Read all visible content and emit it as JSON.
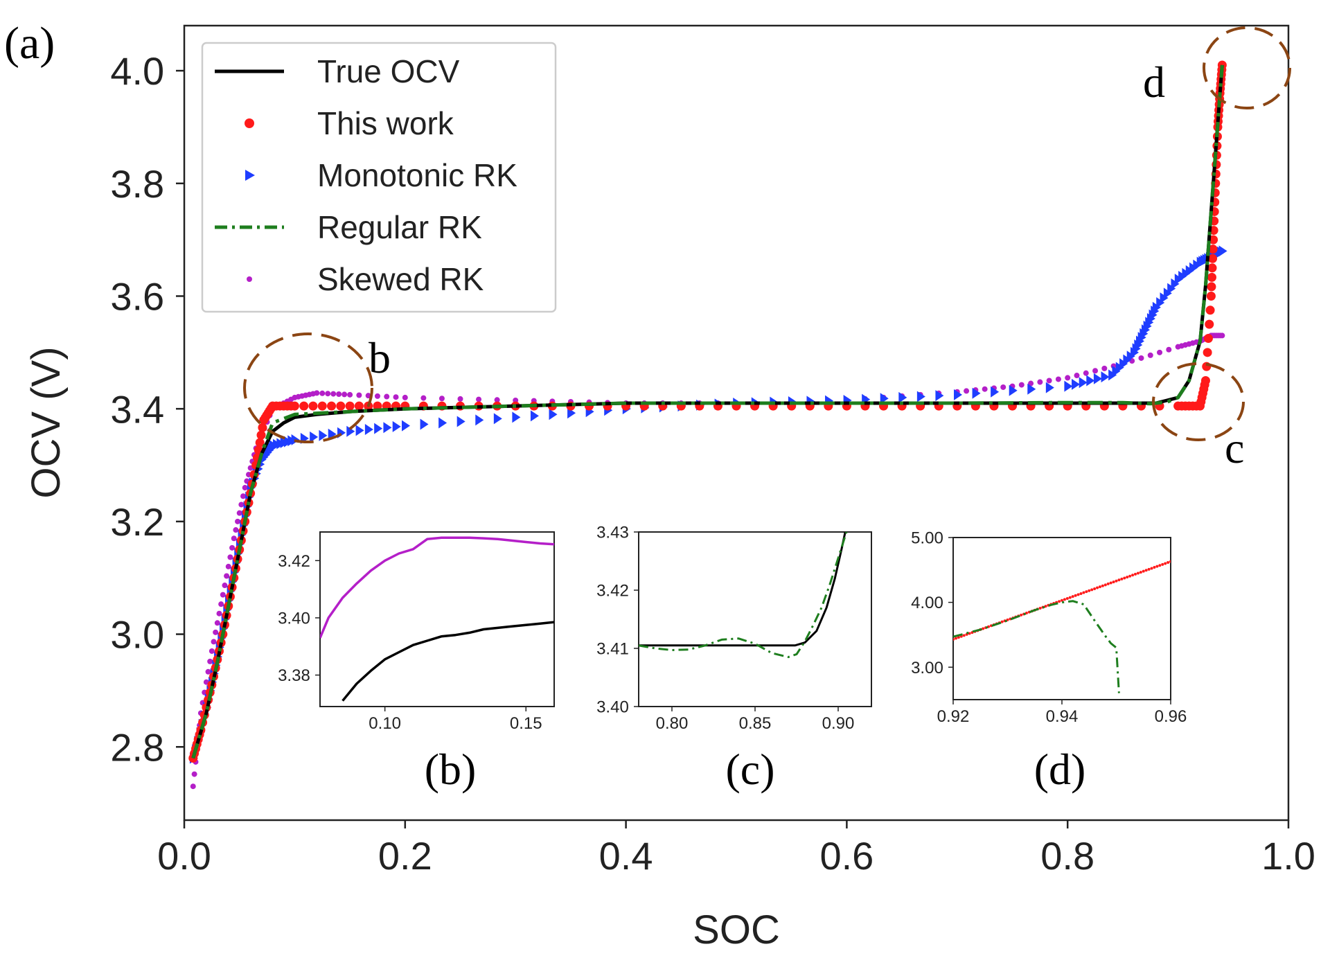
{
  "panel_label": "(a)",
  "colors": {
    "true_ocv": "#000000",
    "this_work": "#ff1a1a",
    "monotonic_rk": "#1f3dff",
    "regular_rk": "#1e7e1e",
    "skewed_rk": "#b41fc8",
    "highlight_circle": "#8b4513"
  },
  "markers": {
    "b": "b",
    "c": "c",
    "d": "d"
  },
  "chart_data": [
    {
      "id": "main",
      "type": "line",
      "xlabel": "SOC",
      "ylabel": "OCV (V)",
      "xlim": [
        0.0,
        1.0
      ],
      "ylim": [
        2.67,
        4.08
      ],
      "xticks": [
        0.0,
        0.2,
        0.4,
        0.6,
        0.8,
        1.0
      ],
      "xtick_labels": [
        "0.0",
        "0.2",
        "0.4",
        "0.6",
        "0.8",
        "1.0"
      ],
      "yticks": [
        2.8,
        3.0,
        3.2,
        3.4,
        3.6,
        3.8,
        4.0
      ],
      "ytick_labels": [
        "2.8",
        "3.0",
        "3.2",
        "3.4",
        "3.6",
        "3.8",
        "4.0"
      ],
      "grid": false,
      "legend_position": "top-left",
      "series": [
        {
          "name": "True OCV",
          "style": "solid-line",
          "x": [
            0.008,
            0.02,
            0.03,
            0.04,
            0.05,
            0.06,
            0.07,
            0.08,
            0.09,
            0.1,
            0.12,
            0.15,
            0.2,
            0.3,
            0.4,
            0.5,
            0.6,
            0.7,
            0.8,
            0.85,
            0.87,
            0.88,
            0.89,
            0.9,
            0.91,
            0.92,
            0.925,
            0.93,
            0.935,
            0.938,
            0.94
          ],
          "y": [
            2.78,
            2.86,
            2.95,
            3.05,
            3.15,
            3.25,
            3.32,
            3.36,
            3.375,
            3.385,
            3.39,
            3.395,
            3.4,
            3.405,
            3.41,
            3.41,
            3.41,
            3.41,
            3.41,
            3.41,
            3.41,
            3.41,
            3.415,
            3.42,
            3.45,
            3.52,
            3.62,
            3.75,
            3.88,
            3.96,
            4.01
          ]
        },
        {
          "name": "This work",
          "style": "dots",
          "x": [
            0.008,
            0.015,
            0.025,
            0.035,
            0.045,
            0.055,
            0.065,
            0.072,
            0.08,
            0.1,
            0.15,
            0.2,
            0.3,
            0.4,
            0.5,
            0.6,
            0.7,
            0.8,
            0.9,
            0.92,
            0.925,
            0.93,
            0.932,
            0.934,
            0.936,
            0.938,
            0.94
          ],
          "y": [
            2.78,
            2.83,
            2.91,
            3.0,
            3.1,
            3.2,
            3.3,
            3.38,
            3.405,
            3.405,
            3.405,
            3.405,
            3.405,
            3.405,
            3.405,
            3.405,
            3.405,
            3.405,
            3.405,
            3.405,
            3.45,
            3.6,
            3.7,
            3.8,
            3.9,
            3.96,
            4.01
          ]
        },
        {
          "name": "Monotonic RK",
          "style": "triangles",
          "x": [
            0.008,
            0.02,
            0.03,
            0.04,
            0.05,
            0.06,
            0.07,
            0.08,
            0.1,
            0.15,
            0.2,
            0.3,
            0.4,
            0.5,
            0.6,
            0.7,
            0.8,
            0.84,
            0.86,
            0.87,
            0.88,
            0.9,
            0.92,
            0.93,
            0.94
          ],
          "y": [
            2.78,
            2.87,
            2.96,
            3.06,
            3.16,
            3.26,
            3.31,
            3.335,
            3.345,
            3.36,
            3.37,
            3.385,
            3.4,
            3.41,
            3.415,
            3.425,
            3.44,
            3.46,
            3.5,
            3.54,
            3.58,
            3.63,
            3.66,
            3.67,
            3.68
          ]
        },
        {
          "name": "Regular RK",
          "style": "dash-dot",
          "x": [
            0.008,
            0.02,
            0.03,
            0.04,
            0.05,
            0.06,
            0.07,
            0.08,
            0.1,
            0.15,
            0.2,
            0.3,
            0.4,
            0.5,
            0.6,
            0.7,
            0.8,
            0.85,
            0.875,
            0.89,
            0.9,
            0.91,
            0.92,
            0.925,
            0.93,
            0.935,
            0.938,
            0.94
          ],
          "y": [
            2.78,
            2.86,
            2.95,
            3.05,
            3.15,
            3.25,
            3.32,
            3.375,
            3.39,
            3.395,
            3.4,
            3.405,
            3.41,
            3.41,
            3.41,
            3.41,
            3.411,
            3.411,
            3.409,
            3.412,
            3.42,
            3.45,
            3.52,
            3.62,
            3.75,
            3.88,
            3.96,
            4.01
          ]
        },
        {
          "name": "Skewed RK",
          "style": "small-dots",
          "x": [
            0.008,
            0.015,
            0.025,
            0.035,
            0.045,
            0.055,
            0.065,
            0.08,
            0.1,
            0.12,
            0.15,
            0.2,
            0.3,
            0.4,
            0.5,
            0.6,
            0.7,
            0.75,
            0.8,
            0.85,
            0.9,
            0.92,
            0.93,
            0.94
          ],
          "y": [
            2.73,
            2.86,
            2.97,
            3.07,
            3.17,
            3.26,
            3.33,
            3.4,
            3.42,
            3.428,
            3.425,
            3.42,
            3.415,
            3.41,
            3.41,
            3.415,
            3.43,
            3.44,
            3.455,
            3.48,
            3.51,
            3.52,
            3.53,
            3.53
          ]
        }
      ]
    },
    {
      "id": "inset-b",
      "type": "line",
      "label": "(b)",
      "xlim": [
        0.077,
        0.16
      ],
      "ylim": [
        3.369,
        3.43
      ],
      "xticks": [
        0.1,
        0.15
      ],
      "xtick_labels": [
        "0.10",
        "0.15"
      ],
      "yticks": [
        3.38,
        3.4,
        3.42
      ],
      "ytick_labels": [
        "3.38",
        "3.40",
        "3.42"
      ],
      "series": [
        {
          "name": "Skewed RK",
          "style": "solid-line",
          "x": [
            0.077,
            0.08,
            0.085,
            0.09,
            0.095,
            0.1,
            0.105,
            0.11,
            0.115,
            0.12,
            0.125,
            0.13,
            0.135,
            0.14,
            0.145,
            0.15,
            0.155,
            0.16
          ],
          "y": [
            3.393,
            3.4,
            3.407,
            3.412,
            3.4165,
            3.42,
            3.4225,
            3.424,
            3.4275,
            3.428,
            3.428,
            3.428,
            3.4278,
            3.4275,
            3.427,
            3.4265,
            3.426,
            3.4257
          ]
        },
        {
          "name": "True OCV",
          "style": "solid-line",
          "x": [
            0.085,
            0.09,
            0.095,
            0.1,
            0.105,
            0.11,
            0.115,
            0.12,
            0.125,
            0.13,
            0.135,
            0.14,
            0.145,
            0.15,
            0.155,
            0.16
          ],
          "y": [
            3.371,
            3.377,
            3.3815,
            3.3855,
            3.388,
            3.3905,
            3.392,
            3.3935,
            3.394,
            3.3948,
            3.396,
            3.3965,
            3.397,
            3.3975,
            3.398,
            3.3985
          ]
        }
      ]
    },
    {
      "id": "inset-c",
      "type": "line",
      "label": "(c)",
      "xlim": [
        0.78,
        0.92
      ],
      "ylim": [
        3.4,
        3.43
      ],
      "xticks": [
        0.8,
        0.85,
        0.9
      ],
      "xtick_labels": [
        "0.80",
        "0.85",
        "0.90"
      ],
      "yticks": [
        3.4,
        3.41,
        3.42,
        3.43
      ],
      "ytick_labels": [
        "3.40",
        "3.41",
        "3.42",
        "3.43"
      ],
      "series": [
        {
          "name": "True OCV",
          "style": "solid-line",
          "x": [
            0.78,
            0.8,
            0.82,
            0.84,
            0.86,
            0.874,
            0.88,
            0.887,
            0.893,
            0.898,
            0.902,
            0.905
          ],
          "y": [
            3.4105,
            3.4105,
            3.4105,
            3.4105,
            3.4105,
            3.4105,
            3.411,
            3.413,
            3.417,
            3.422,
            3.427,
            3.431
          ]
        },
        {
          "name": "Regular RK",
          "style": "dash-dot",
          "x": [
            0.78,
            0.79,
            0.8,
            0.81,
            0.82,
            0.83,
            0.84,
            0.85,
            0.86,
            0.87,
            0.875,
            0.88,
            0.885,
            0.89,
            0.895,
            0.9,
            0.905
          ],
          "y": [
            3.4105,
            3.41,
            3.4097,
            3.4098,
            3.4105,
            3.4115,
            3.4117,
            3.4108,
            3.4092,
            3.4085,
            3.409,
            3.4112,
            3.414,
            3.417,
            3.421,
            3.4255,
            3.43
          ]
        }
      ]
    },
    {
      "id": "inset-d",
      "type": "line",
      "label": "(d)",
      "xlim": [
        0.92,
        0.96
      ],
      "ylim": [
        2.5,
        5.0
      ],
      "xticks": [
        0.92,
        0.94,
        0.96
      ],
      "xtick_labels": [
        "0.92",
        "0.94",
        "0.96"
      ],
      "yticks": [
        3.0,
        4.0,
        5.0
      ],
      "ytick_labels": [
        "3.00",
        "4.00",
        "5.00"
      ],
      "series": [
        {
          "name": "This work",
          "style": "dots",
          "x": [
            0.92,
            0.925,
            0.93,
            0.935,
            0.94,
            0.945,
            0.95,
            0.955,
            0.96
          ],
          "y": [
            3.43,
            3.58,
            3.73,
            3.88,
            4.03,
            4.18,
            4.33,
            4.48,
            4.63
          ]
        },
        {
          "name": "Regular RK",
          "style": "dash-dot",
          "x": [
            0.92,
            0.925,
            0.93,
            0.935,
            0.938,
            0.94,
            0.942,
            0.944,
            0.946,
            0.948,
            0.949,
            0.95,
            0.9505
          ],
          "y": [
            3.47,
            3.58,
            3.72,
            3.88,
            3.96,
            4.0,
            4.02,
            3.97,
            3.72,
            3.48,
            3.37,
            3.3,
            2.6
          ]
        }
      ]
    }
  ]
}
